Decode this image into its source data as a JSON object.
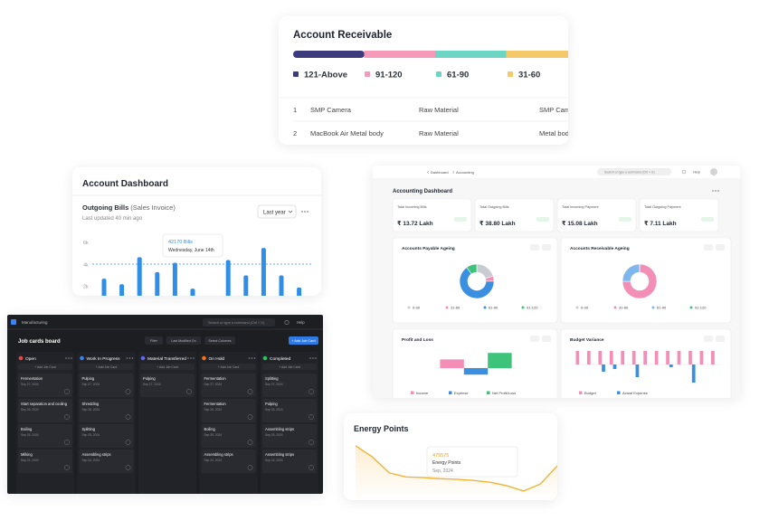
{
  "account_receivable": {
    "title": "Account Receivable",
    "legend": [
      {
        "label": "121-Above",
        "color": "#3e3b7c"
      },
      {
        "label": "91-120",
        "color": "#f59ab9"
      },
      {
        "label": "61-90",
        "color": "#6dd5c3"
      },
      {
        "label": "31-60",
        "color": "#f5c96a"
      }
    ],
    "rows": [
      [
        "1",
        "SMP Camera",
        "Raw Material",
        "SMP Camera"
      ],
      [
        "2",
        "MacBook Air Metal body",
        "Raw Material",
        "Metal body"
      ]
    ]
  },
  "account_dashboard": {
    "title": "Account Dashboard",
    "chart_title": "Outgoing Bills",
    "chart_subtitle": "(Sales Invoice)",
    "updated": "Last updated 40 min ago",
    "period": "Last year",
    "tooltip_value": "42170 Bills",
    "tooltip_date": "Wednesday, June 14th"
  },
  "job_board": {
    "app": "Manufacturing",
    "search": "Search or type a command (Ctrl + G)",
    "help": "Help",
    "title": "Job cards board",
    "actions": [
      "Filter",
      "Last Modified On",
      "Select Columns"
    ],
    "add": "+ Add Job Card",
    "columns": [
      {
        "name": "Open",
        "color": "#e5484d",
        "cards": [
          {
            "title": "Fermentation",
            "date": "Sep 27, 2024"
          },
          {
            "title": "Start separation and cooling",
            "date": "Sep 26, 2024"
          },
          {
            "title": "Boiling",
            "date": "Sep 25, 2024"
          },
          {
            "title": "Milking",
            "date": "Sep 24, 2024"
          }
        ]
      },
      {
        "name": "Work In Progress",
        "color": "#3b82f6",
        "cards": [
          {
            "title": "Pulping",
            "date": "Sep 27, 2024"
          },
          {
            "title": "Shredding",
            "date": "Sep 26, 2024"
          },
          {
            "title": "Splitting",
            "date": "Sep 25, 2024"
          },
          {
            "title": "Assembling strips",
            "date": "Sep 24, 2024"
          }
        ]
      },
      {
        "name": "Material Transferred",
        "color": "#6366f1",
        "cards": [
          {
            "title": "Pulping",
            "date": "Sep 27, 2024"
          }
        ]
      },
      {
        "name": "On Hold",
        "color": "#f97316",
        "cards": [
          {
            "title": "Fermentation",
            "date": "Sep 27, 2024"
          },
          {
            "title": "Fermentation",
            "date": "Sep 26, 2024"
          },
          {
            "title": "Boiling",
            "date": "Sep 25, 2024"
          },
          {
            "title": "Assembling strips",
            "date": "Sep 24, 2024"
          }
        ]
      },
      {
        "name": "Completed",
        "color": "#22c55e",
        "cards": [
          {
            "title": "Splitting",
            "date": "Sep 27, 2024"
          },
          {
            "title": "Pulping",
            "date": "Sep 26, 2024"
          },
          {
            "title": "Assembling strips",
            "date": "Sep 25, 2024"
          },
          {
            "title": "Assembling strips",
            "date": "Sep 24, 2024"
          }
        ]
      }
    ]
  },
  "accounting_dashboard": {
    "breadcrumb": [
      "Dashboard",
      "Accounting"
    ],
    "search": "Search or type a command (Ctrl + G)",
    "help": "Help",
    "title": "Accounting Dashboard",
    "kpis": [
      {
        "label": "Total Incoming Bills",
        "value": "₹ 13.72 Lakh"
      },
      {
        "label": "Total Outgoing Bills",
        "value": "₹ 38.80 Lakh"
      },
      {
        "label": "Total Incoming Payment",
        "value": "₹ 15.08 Lakh"
      },
      {
        "label": "Total Outgoing Payment",
        "value": "₹ 7.11 Lakh"
      }
    ]
  },
  "energy_points": {
    "title": "Energy Points",
    "tooltip_value": "475575",
    "tooltip_label": "Energy Points",
    "tooltip_date": "Sep, 2024"
  },
  "chart_data": [
    {
      "type": "bar",
      "categories": [
        null,
        null,
        null,
        null,
        null,
        null,
        null,
        null,
        null,
        null,
        null,
        null
      ],
      "values": [
        2700,
        2200,
        4650,
        3300,
        4150,
        1800,
        null,
        4400,
        3000,
        5500,
        3000,
        1900
      ],
      "color": "#2f8ee8",
      "ylim": [
        0,
        6000
      ],
      "yticks": [
        {
          "value": 2000,
          "label": "2k"
        },
        {
          "value": 4000,
          "label": "4k"
        },
        {
          "value": 6000,
          "label": "6k"
        }
      ]
    },
    {
      "type": "pie",
      "title": "Accounts Payable Ageing",
      "categories": [
        "0-30",
        "31-60",
        "61-90",
        "91-120"
      ],
      "values": [
        20,
        5,
        65,
        10
      ],
      "colors": [
        "#c8ccd2",
        "#f38fb6",
        "#3a8fe0",
        "#3ec37a"
      ]
    },
    {
      "type": "pie",
      "title": "Accounts Receivable Ageing",
      "categories": [
        "0-30",
        "31-60",
        "61-90",
        "91-120"
      ],
      "values": [
        0,
        75,
        25,
        0
      ],
      "colors": [
        "#c8ccd2",
        "#f38fb6",
        "#7fb6ee",
        "#3ec37a"
      ]
    },
    {
      "type": "bar",
      "title": "Profit and Loss",
      "categories": [
        null
      ],
      "series": [
        {
          "name": "Income",
          "color": "#f38fb6",
          "values": [
            12
          ]
        },
        {
          "name": "Expense",
          "color": "#3a8fe0",
          "values": [
            -9
          ]
        },
        {
          "name": "Net Profit/Loss",
          "color": "#3ec37a",
          "values": [
            21
          ]
        }
      ],
      "ylim": [
        -25,
        30
      ]
    },
    {
      "type": "bar",
      "title": "Budget Variance",
      "categories": [
        null,
        null,
        null,
        null,
        null,
        null,
        null,
        null,
        null,
        null,
        null,
        null,
        null
      ],
      "series": [
        {
          "name": "Budget",
          "color": "#f38fb6",
          "values": [
            15,
            15,
            15,
            15,
            15,
            15,
            15,
            15,
            15,
            15,
            15,
            15,
            15
          ]
        },
        {
          "name": "Actual Expense",
          "color": "#3a8fe0",
          "values": [
            null,
            null,
            -8,
            -5,
            null,
            -14,
            null,
            null,
            -3,
            null,
            -20,
            null,
            null
          ]
        }
      ],
      "ylim": [
        -30,
        20
      ]
    },
    {
      "type": "line",
      "categories": [
        null,
        null,
        null,
        null,
        null,
        null,
        null,
        null,
        null,
        null,
        null,
        null,
        null
      ],
      "values": [
        91,
        72,
        45,
        38,
        37,
        35,
        34,
        32,
        29,
        23,
        14,
        26,
        57
      ],
      "color": "#f2b233",
      "ylim": [
        0,
        100
      ]
    }
  ]
}
